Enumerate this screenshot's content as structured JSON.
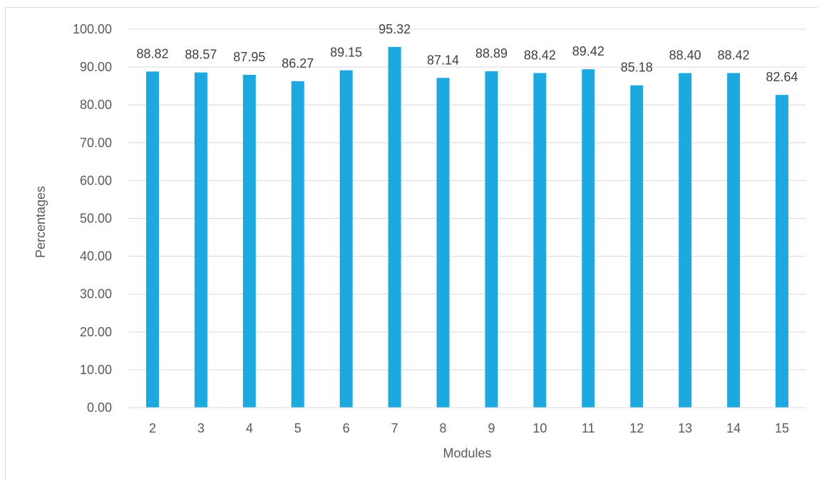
{
  "chart_data": {
    "type": "bar",
    "title": "",
    "xlabel": "Modules",
    "ylabel": "Percentages",
    "categories": [
      "2",
      "3",
      "4",
      "5",
      "6",
      "7",
      "8",
      "9",
      "10",
      "11",
      "12",
      "13",
      "14",
      "15"
    ],
    "values": [
      88.82,
      88.57,
      87.95,
      86.27,
      89.15,
      95.32,
      87.14,
      88.89,
      88.42,
      89.42,
      85.18,
      88.4,
      88.42,
      82.64
    ],
    "data_labels": [
      "88.82",
      "88.57",
      "87.95",
      "86.27",
      "89.15",
      "95.32",
      "87.14",
      "88.89",
      "88.42",
      "89.42",
      "85.18",
      "88.40",
      "88.42",
      "82.64"
    ],
    "ylim": [
      0,
      100
    ],
    "y_ticks": [
      "0.00",
      "10.00",
      "20.00",
      "30.00",
      "40.00",
      "50.00",
      "60.00",
      "70.00",
      "80.00",
      "90.00",
      "100.00"
    ],
    "grid": true,
    "legend": "none",
    "colors": {
      "bar": "#1BA9E0",
      "grid": "#d9d9d9",
      "axis_text": "#595959",
      "label_text": "#404040"
    }
  }
}
